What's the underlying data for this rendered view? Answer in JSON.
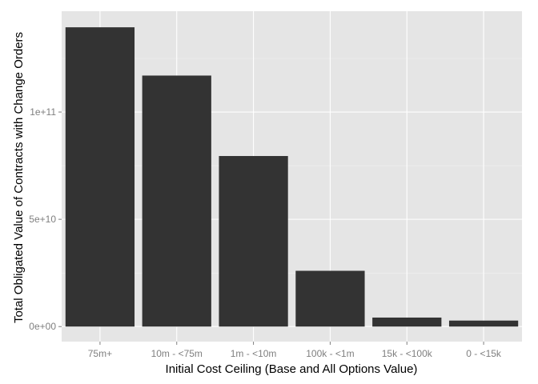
{
  "colors": {
    "panel_background": "#e5e5e5",
    "grid_major": "#ffffff",
    "grid_minor": "#f2f2f2",
    "bar_fill": "#333333",
    "tick_text": "#7f7f7f",
    "title_text": "#000000"
  },
  "chart_data": {
    "type": "bar",
    "title": "",
    "xlabel": "Initial Cost Ceiling (Base and All Options Value)",
    "ylabel": "Total Obligated Value of Contracts with Change Orders",
    "categories": [
      "75m+",
      "10m - <75m",
      "1m - <10m",
      "100k - <1m",
      "15k - <100k",
      "0 - <15k"
    ],
    "values": [
      139500000000,
      117000000000,
      79500000000,
      26000000000,
      4200000000,
      2800000000
    ],
    "ylim": [
      -7000000000,
      147000000000
    ],
    "y_ticks": [
      0,
      50000000000,
      100000000000
    ],
    "y_tick_labels": [
      "0e+00",
      "5e+10",
      "1e+11"
    ],
    "y_minor_ticks": [
      25000000000,
      75000000000,
      125000000000
    ],
    "grid": true,
    "legend": "none"
  }
}
